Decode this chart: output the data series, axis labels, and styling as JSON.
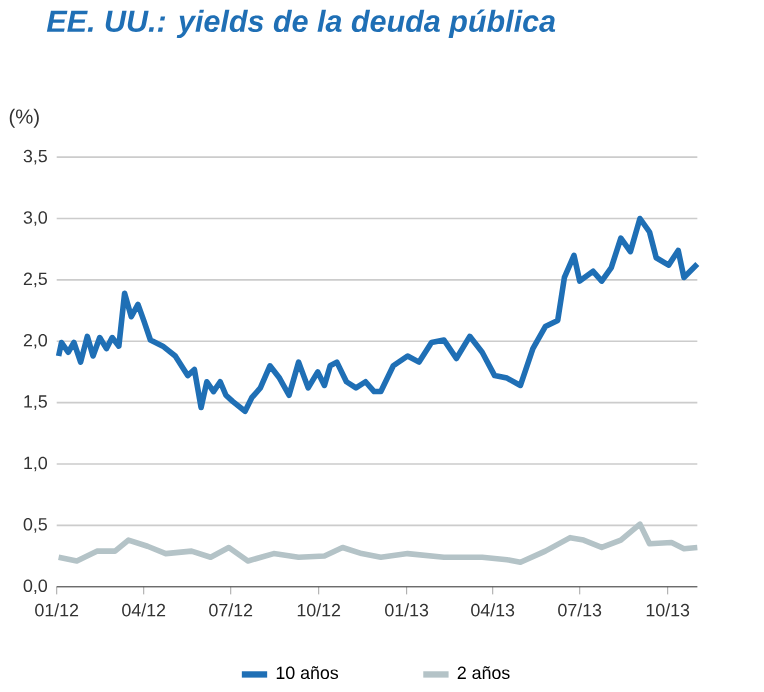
{
  "chart_data": {
    "type": "line",
    "title": "EE. UU.: yields de la deuda pública",
    "ylabel": "(%)",
    "x": [
      "2012-01-03",
      "2012-01-06",
      "2012-01-13",
      "2012-01-19",
      "2012-01-26",
      "2012-02-02",
      "2012-02-08",
      "2012-02-15",
      "2012-02-22",
      "2012-02-28",
      "2012-03-06",
      "2012-03-12",
      "2012-03-19",
      "2012-03-26",
      "2012-04-01",
      "2012-04-08",
      "2012-04-21",
      "2012-05-04",
      "2012-05-17",
      "2012-05-24",
      "2012-05-31",
      "2012-06-06",
      "2012-06-13",
      "2012-06-20",
      "2012-06-26",
      "2012-07-03",
      "2012-07-16",
      "2012-07-23",
      "2012-08-01",
      "2012-08-11",
      "2012-08-21",
      "2012-08-31",
      "2012-09-10",
      "2012-09-20",
      "2012-09-30",
      "2012-10-07",
      "2012-10-13",
      "2012-10-20",
      "2012-10-30",
      "2012-11-09",
      "2012-11-19",
      "2012-11-28",
      "2012-12-05",
      "2012-12-18",
      "2013-01-02",
      "2013-01-14",
      "2013-01-27",
      "2013-02-09",
      "2013-02-22",
      "2013-03-08",
      "2013-03-21",
      "2013-04-03",
      "2013-04-16",
      "2013-04-30",
      "2013-05-13",
      "2013-05-26",
      "2013-06-08",
      "2013-06-15",
      "2013-06-25",
      "2013-07-01",
      "2013-07-15",
      "2013-07-24",
      "2013-08-03",
      "2013-08-13",
      "2013-08-23",
      "2013-09-02",
      "2013-09-12",
      "2013-09-19",
      "2013-10-02",
      "2013-10-12",
      "2013-10-18",
      "2013-11-01"
    ],
    "series": [
      {
        "name": "10 años",
        "color": "#1f6fb5",
        "values": [
          1.88,
          1.99,
          1.91,
          1.99,
          1.83,
          2.04,
          1.88,
          2.03,
          1.94,
          2.03,
          1.96,
          2.39,
          2.2,
          2.3,
          2.17,
          2.01,
          1.96,
          1.88,
          1.72,
          1.77,
          1.46,
          1.67,
          1.59,
          1.67,
          1.56,
          1.51,
          1.43,
          1.54,
          1.62,
          1.8,
          1.7,
          1.56,
          1.83,
          1.62,
          1.75,
          1.64,
          1.8,
          1.83,
          1.67,
          1.62,
          1.67,
          1.59,
          1.59,
          1.8,
          1.88,
          1.83,
          1.99,
          2.01,
          1.86,
          2.04,
          1.91,
          1.72,
          1.7,
          1.64,
          1.94,
          2.12,
          2.17,
          2.52,
          2.7,
          2.49,
          2.57,
          2.49,
          2.6,
          2.84,
          2.73,
          3.0,
          2.89,
          2.68,
          2.62,
          2.74,
          2.52,
          2.63
        ]
      },
      {
        "name": "2 años",
        "color": "#b4c3c7",
        "x": [
          "2012-01-03",
          "2012-01-22",
          "2012-02-12",
          "2012-03-02",
          "2012-03-16",
          "2012-04-05",
          "2012-04-24",
          "2012-05-21",
          "2012-06-10",
          "2012-06-29",
          "2012-07-19",
          "2012-08-15",
          "2012-09-10",
          "2012-10-07",
          "2012-10-26",
          "2012-11-15",
          "2012-12-05",
          "2013-01-02",
          "2013-02-09",
          "2013-03-21",
          "2013-04-16",
          "2013-04-30",
          "2013-05-26",
          "2013-06-21",
          "2013-07-05",
          "2013-07-24",
          "2013-08-13",
          "2013-09-02",
          "2013-09-12",
          "2013-10-05",
          "2013-10-18",
          "2013-11-01"
        ],
        "values": [
          0.24,
          0.21,
          0.29,
          0.29,
          0.38,
          0.33,
          0.27,
          0.29,
          0.24,
          0.32,
          0.21,
          0.27,
          0.24,
          0.25,
          0.32,
          0.27,
          0.24,
          0.27,
          0.24,
          0.24,
          0.22,
          0.2,
          0.29,
          0.4,
          0.38,
          0.32,
          0.38,
          0.51,
          0.35,
          0.36,
          0.31,
          0.32
        ]
      }
    ],
    "xlim": [
      "2012-01-01",
      "2013-11-01"
    ],
    "xticks": [
      {
        "value": "2012-01-01",
        "label": "01/12"
      },
      {
        "value": "2012-04-01",
        "label": "04/12"
      },
      {
        "value": "2012-07-01",
        "label": "07/12"
      },
      {
        "value": "2012-10-01",
        "label": "10/12"
      },
      {
        "value": "2013-01-01",
        "label": "01/13"
      },
      {
        "value": "2013-04-01",
        "label": "04/13"
      },
      {
        "value": "2013-07-01",
        "label": "07/13"
      },
      {
        "value": "2013-10-01",
        "label": "10/13"
      }
    ],
    "ylim": [
      0,
      3.5
    ],
    "yticks": [
      {
        "value": 0,
        "label": "0,0"
      },
      {
        "value": 0.5,
        "label": "0,5"
      },
      {
        "value": 1,
        "label": "1,0"
      },
      {
        "value": 1.5,
        "label": "1,5"
      },
      {
        "value": 2,
        "label": "2,0"
      },
      {
        "value": 2.5,
        "label": "2,5"
      },
      {
        "value": 3,
        "label": "3,0"
      },
      {
        "value": 3.5,
        "label": "3,5"
      }
    ],
    "grid": "y",
    "legend": "bottom",
    "marker": "none",
    "line_style": "solid"
  }
}
